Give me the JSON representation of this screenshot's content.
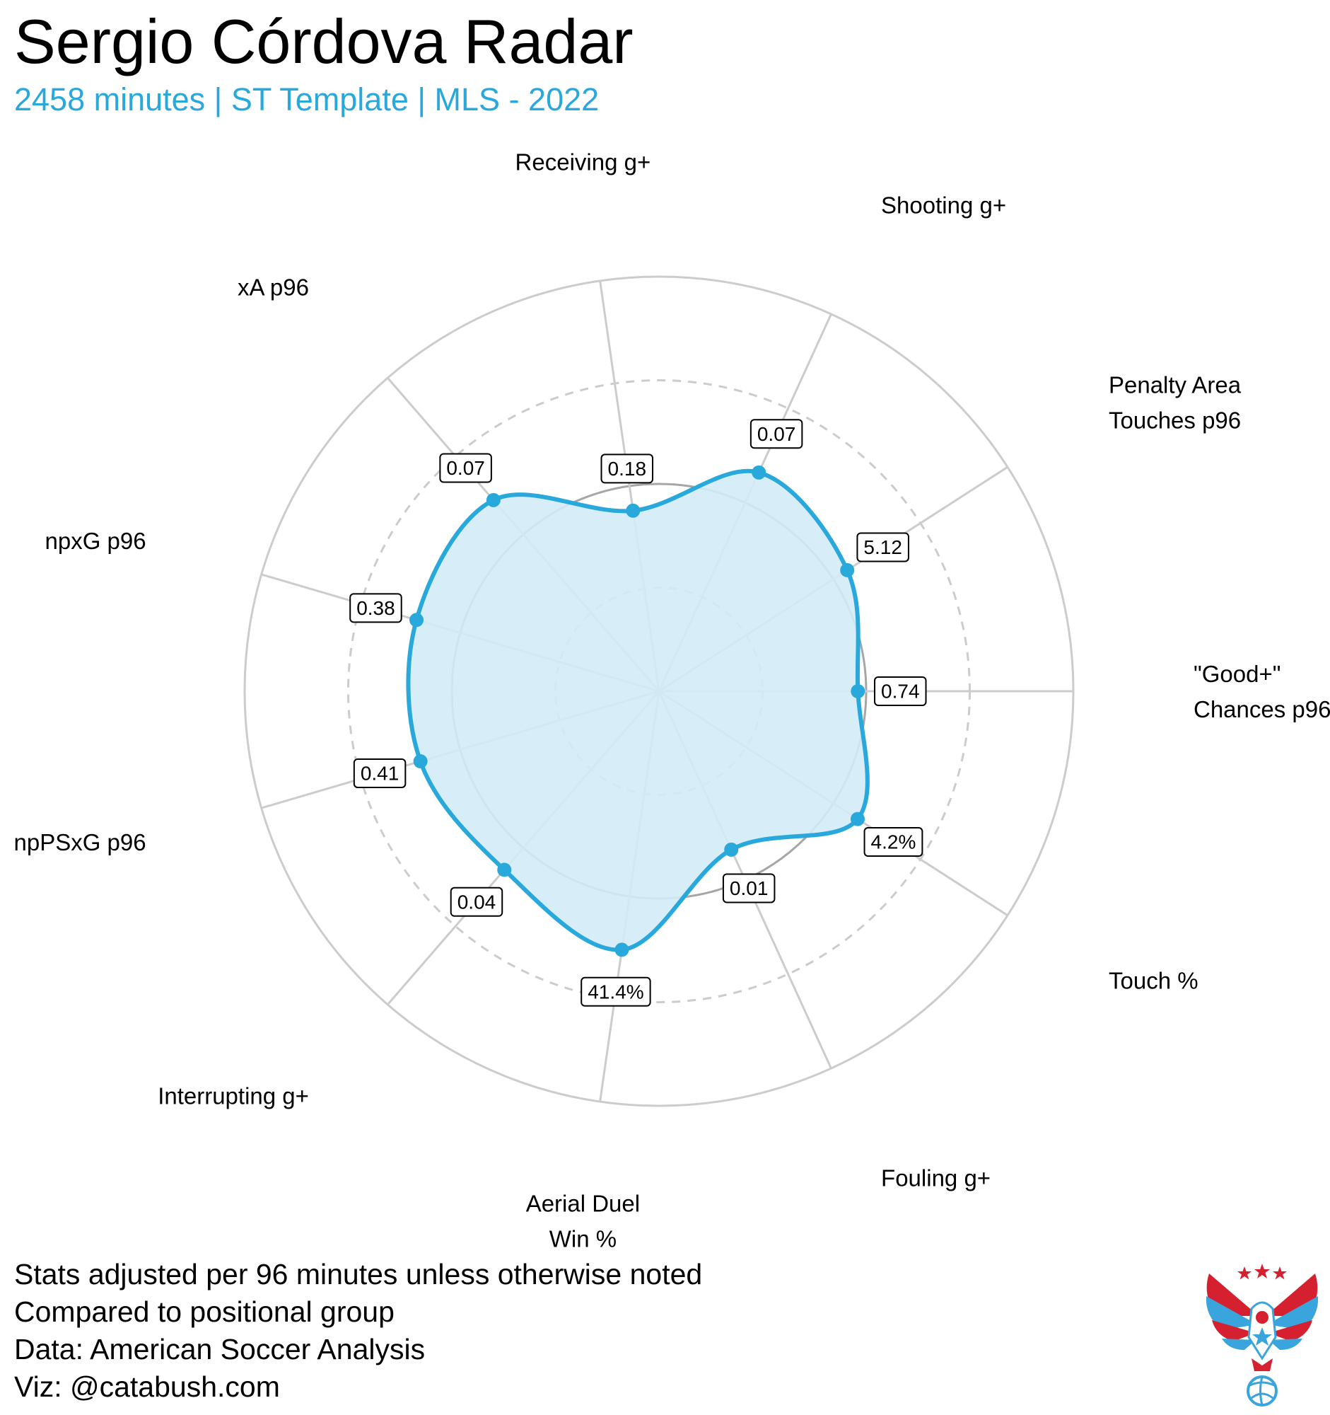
{
  "colors": {
    "accent": "#29a8dc",
    "fill": "#d3ecf8",
    "grid": "#cccccc",
    "ring_inner": "#a6a6a6",
    "logo_red": "#d4202f",
    "logo_blue": "#3aa4dc"
  },
  "header": {
    "title": "Sergio Córdova Radar",
    "subtitle": "2458 minutes | ST Template | MLS - 2022"
  },
  "chart_data": {
    "type": "radar",
    "title": "Sergio Córdova Radar",
    "subtitle": "2458 minutes | ST Template | MLS - 2022",
    "scale": "percentile",
    "rlim": [
      0,
      100
    ],
    "rings": [
      25,
      50,
      75,
      100
    ],
    "axes": [
      {
        "label_lines": [
          "\"Good+\"",
          "Chances p96"
        ],
        "value_label": "0.74",
        "percentile": 48
      },
      {
        "label_lines": [
          "Penalty Area",
          "Touches p96"
        ],
        "value_label": "5.12",
        "percentile": 54
      },
      {
        "label_lines": [
          "Shooting g+"
        ],
        "value_label": "0.07",
        "percentile": 58
      },
      {
        "label_lines": [
          "Receiving g+"
        ],
        "value_label": "0.18",
        "percentile": 44
      },
      {
        "label_lines": [
          "xA p96"
        ],
        "value_label": "0.07",
        "percentile": 61
      },
      {
        "label_lines": [
          "npxG p96"
        ],
        "value_label": "0.38",
        "percentile": 61
      },
      {
        "label_lines": [
          "npPSxG p96"
        ],
        "value_label": "0.41",
        "percentile": 60
      },
      {
        "label_lines": [
          "Interrupting g+"
        ],
        "value_label": "0.04",
        "percentile": 57
      },
      {
        "label_lines": [
          "Aerial Duel",
          "Win %"
        ],
        "value_label": "41.4%",
        "percentile": 63
      },
      {
        "label_lines": [
          "Fouling g+"
        ],
        "value_label": "0.01",
        "percentile": 42
      },
      {
        "label_lines": [
          "Touch %"
        ],
        "value_label": "4.2%",
        "percentile": 57
      }
    ]
  },
  "footer": {
    "lines": [
      "Stats adjusted per 96 minutes unless otherwise noted",
      "Compared to positional group",
      "Data: American Soccer Analysis",
      "Viz: @catabush.com"
    ]
  },
  "logo": {
    "icon": "eagle-soccer-ball-icon"
  }
}
